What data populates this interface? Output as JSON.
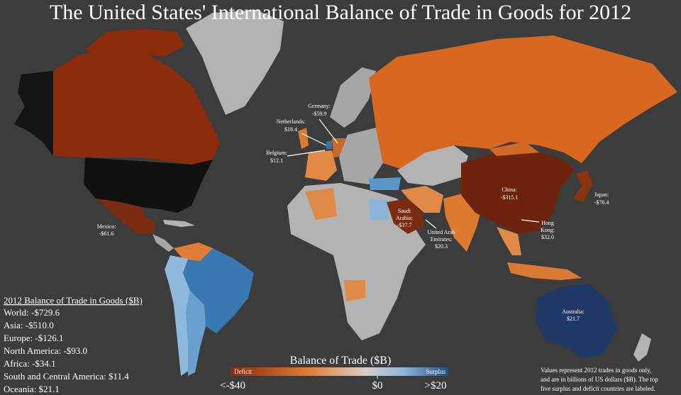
{
  "title": "The United States' International Balance of Trade in Goods for 2012",
  "country_labels": [
    {
      "name_lines": [
        "Germany:"
      ],
      "value": "-$59.9"
    },
    {
      "name_lines": [
        "Netherlands:"
      ],
      "value": "$18.4"
    },
    {
      "name_lines": [
        "Belgium:"
      ],
      "value": "$12.1"
    },
    {
      "name_lines": [
        "Mexico:"
      ],
      "value": "-$61.6"
    },
    {
      "name_lines": [
        "China:"
      ],
      "value": "-$315.1"
    },
    {
      "name_lines": [
        "Japan:"
      ],
      "value": "-$76.4"
    },
    {
      "name_lines": [
        "Saudi",
        "Arabia:"
      ],
      "value": "-$37.7"
    },
    {
      "name_lines": [
        "United Arab",
        "Emirates:"
      ],
      "value": "$20.3"
    },
    {
      "name_lines": [
        "Hong",
        "Kong:"
      ],
      "value": "$32.0"
    },
    {
      "name_lines": [
        "Australia:"
      ],
      "value": "$21.7"
    }
  ],
  "summary": {
    "heading": "2012 Balance of Trade in Goods ($B)",
    "rows": [
      "World: -$729.6",
      "Asia: -$510.0",
      "Europe: -$126.1",
      "North America: -$93.0",
      "Africa: -$34.1",
      "South and Central America: $11.4",
      "Oceania: $21.1"
    ]
  },
  "legend": {
    "title": "Balance of Trade ($B)",
    "deficit": "Deficit",
    "surplus": "Surplus",
    "ticks": [
      "<-$40",
      "$0",
      ">$20"
    ]
  },
  "note": [
    "Values represent 2012 trades in goods only,",
    "and are in billions of US dollars ($B). The top",
    "five surplus and deficit countries are labeled."
  ]
}
